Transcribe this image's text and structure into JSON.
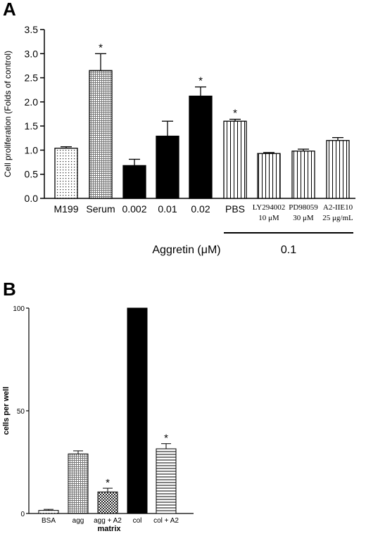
{
  "chart_data": [
    {
      "panel": "A",
      "type": "bar",
      "ylabel": "Cell proliferation (Folds of control)",
      "ylim": [
        0,
        3.5
      ],
      "yticks": [
        "0.0",
        "0.5",
        "1.0",
        "1.5",
        "2.0",
        "2.5",
        "3.0",
        "3.5"
      ],
      "xlabel": "Aggretin (μM)",
      "group_label": "0.1",
      "grid": false,
      "bars": [
        {
          "category": "M199",
          "sublabel": "",
          "value": 1.04,
          "error": 0.03,
          "significant": false,
          "pattern": "dots"
        },
        {
          "category": "Serum",
          "sublabel": "",
          "value": 2.65,
          "error": 0.35,
          "significant": true,
          "pattern": "grid"
        },
        {
          "category": "0.002",
          "sublabel": "",
          "value": 0.68,
          "error": 0.13,
          "significant": false,
          "pattern": "black"
        },
        {
          "category": "0.01",
          "sublabel": "",
          "value": 1.29,
          "error": 0.31,
          "significant": false,
          "pattern": "black"
        },
        {
          "category": "0.02",
          "sublabel": "",
          "value": 2.12,
          "error": 0.19,
          "significant": true,
          "pattern": "black"
        },
        {
          "category": "PBS",
          "sublabel": "",
          "value": 1.6,
          "error": 0.04,
          "significant": true,
          "pattern": "vlines"
        },
        {
          "category": "LY294002",
          "sublabel": "10 μM",
          "value": 0.93,
          "error": 0.02,
          "significant": false,
          "pattern": "vlines"
        },
        {
          "category": "PD98059",
          "sublabel": "30 μM",
          "value": 0.98,
          "error": 0.04,
          "significant": false,
          "pattern": "vlines"
        },
        {
          "category": "A2-IIE10",
          "sublabel": "25 μg/mL",
          "value": 1.2,
          "error": 0.06,
          "significant": false,
          "pattern": "vlines"
        }
      ],
      "significance_mark": "*"
    },
    {
      "panel": "B",
      "type": "bar",
      "ylabel": "cells per well",
      "xlabel": "matrix",
      "ylim": [
        0,
        100
      ],
      "yticks": [
        "0",
        "50",
        "100"
      ],
      "grid": false,
      "bars": [
        {
          "category": "BSA",
          "value": 1.5,
          "error": 0.5,
          "significant": false,
          "pattern": "dots"
        },
        {
          "category": "agg",
          "value": 29,
          "error": 1.5,
          "significant": false,
          "pattern": "grid"
        },
        {
          "category": "agg + A2",
          "value": 10.5,
          "error": 1.8,
          "significant": true,
          "pattern": "checker"
        },
        {
          "category": "col",
          "value": 100,
          "error": 0,
          "significant": false,
          "pattern": "black"
        },
        {
          "category": "col + A2",
          "value": 31.5,
          "error": 2.5,
          "significant": true,
          "pattern": "hlines"
        }
      ],
      "significance_mark": "*"
    }
  ]
}
